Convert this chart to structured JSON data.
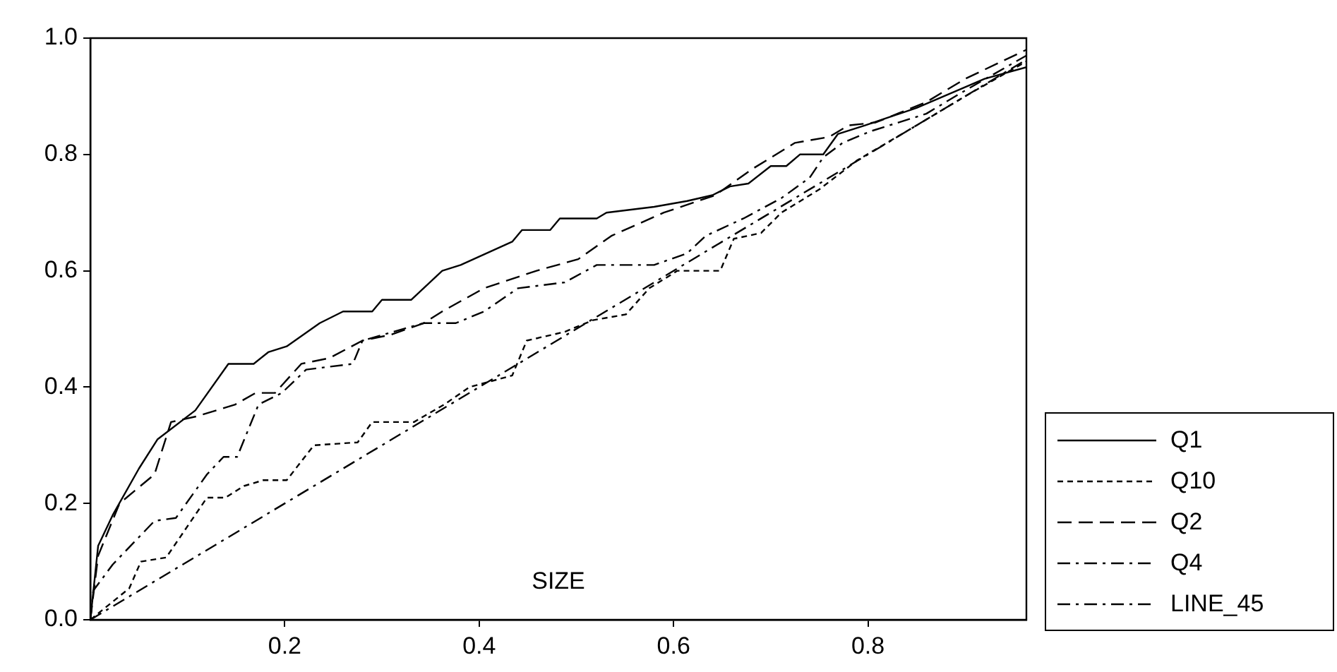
{
  "chart_data": {
    "type": "line",
    "xlabel": "SIZE",
    "xlim": [
      0,
      0.963
    ],
    "xticks": [
      0.2,
      0.4,
      0.6,
      0.8
    ],
    "ylim": [
      0,
      1
    ],
    "yticks": [
      {
        "value": 0,
        "label": "0.0"
      },
      0.2,
      0.4,
      0.6,
      0.8,
      {
        "value": 1,
        "label": "1.0"
      }
    ],
    "grid": false,
    "legend": "bottom right",
    "marker": "none",
    "series": [
      {
        "name": "Q1",
        "color": "#000000",
        "line_style": "solid",
        "x": [
          0,
          0.008,
          0.023,
          0.05,
          0.069,
          0.108,
          0.142,
          0.168,
          0.183,
          0.202,
          0.236,
          0.26,
          0.29,
          0.3,
          0.33,
          0.362,
          0.381,
          0.434,
          0.444,
          0.473,
          0.483,
          0.521,
          0.531,
          0.58,
          0.614,
          0.64,
          0.658,
          0.677,
          0.7,
          0.716,
          0.73,
          0.754,
          0.769,
          0.797,
          0.85,
          0.92,
          0.963
        ],
        "values": [
          0,
          0.127,
          0.18,
          0.26,
          0.31,
          0.36,
          0.44,
          0.44,
          0.46,
          0.47,
          0.51,
          0.53,
          0.53,
          0.55,
          0.55,
          0.6,
          0.61,
          0.65,
          0.67,
          0.67,
          0.69,
          0.69,
          0.7,
          0.71,
          0.72,
          0.73,
          0.745,
          0.75,
          0.78,
          0.78,
          0.8,
          0.8,
          0.835,
          0.85,
          0.88,
          0.93,
          0.95
        ]
      },
      {
        "name": "Q10",
        "color": "#000000",
        "line_style": "dotted",
        "x": [
          0,
          0.04,
          0.052,
          0.078,
          0.12,
          0.139,
          0.158,
          0.178,
          0.202,
          0.23,
          0.275,
          0.29,
          0.333,
          0.364,
          0.39,
          0.434,
          0.449,
          0.488,
          0.517,
          0.551,
          0.575,
          0.604,
          0.648,
          0.662,
          0.69,
          0.711,
          0.75,
          0.789,
          0.85,
          0.9,
          0.963
        ],
        "values": [
          0,
          0.054,
          0.1,
          0.107,
          0.21,
          0.21,
          0.23,
          0.24,
          0.24,
          0.3,
          0.305,
          0.34,
          0.34,
          0.37,
          0.4,
          0.42,
          0.48,
          0.495,
          0.515,
          0.525,
          0.57,
          0.6,
          0.6,
          0.655,
          0.665,
          0.7,
          0.74,
          0.79,
          0.85,
          0.9,
          0.96
        ]
      },
      {
        "name": "Q2",
        "color": "#000000",
        "line_style": "dashed",
        "x": [
          0,
          0.008,
          0.03,
          0.066,
          0.083,
          0.11,
          0.149,
          0.17,
          0.19,
          0.217,
          0.246,
          0.28,
          0.309,
          0.343,
          0.362,
          0.405,
          0.459,
          0.502,
          0.536,
          0.59,
          0.643,
          0.681,
          0.725,
          0.76,
          0.78,
          0.808,
          0.86,
          0.9,
          0.963
        ],
        "values": [
          0,
          0.11,
          0.2,
          0.25,
          0.34,
          0.35,
          0.37,
          0.39,
          0.39,
          0.44,
          0.45,
          0.48,
          0.49,
          0.51,
          0.53,
          0.57,
          0.6,
          0.62,
          0.66,
          0.7,
          0.73,
          0.775,
          0.82,
          0.83,
          0.85,
          0.855,
          0.89,
          0.93,
          0.98
        ]
      },
      {
        "name": "Q4",
        "color": "#000000",
        "line_style": "dashdot",
        "x": [
          0,
          0.003,
          0.023,
          0.066,
          0.088,
          0.12,
          0.137,
          0.151,
          0.173,
          0.197,
          0.222,
          0.27,
          0.28,
          0.343,
          0.376,
          0.405,
          0.44,
          0.488,
          0.521,
          0.58,
          0.614,
          0.633,
          0.672,
          0.711,
          0.74,
          0.754,
          0.774,
          0.803,
          0.86,
          0.9,
          0.963
        ],
        "values": [
          0,
          0.05,
          0.095,
          0.17,
          0.175,
          0.25,
          0.28,
          0.28,
          0.37,
          0.39,
          0.43,
          0.44,
          0.48,
          0.51,
          0.51,
          0.53,
          0.57,
          0.58,
          0.61,
          0.61,
          0.63,
          0.66,
          0.69,
          0.725,
          0.76,
          0.795,
          0.82,
          0.84,
          0.87,
          0.91,
          0.97
        ]
      },
      {
        "name": "LINE_45",
        "color": "#000000",
        "line_style": "dashdot",
        "x": [
          0,
          0.963
        ],
        "values": [
          0,
          0.963
        ]
      }
    ]
  }
}
